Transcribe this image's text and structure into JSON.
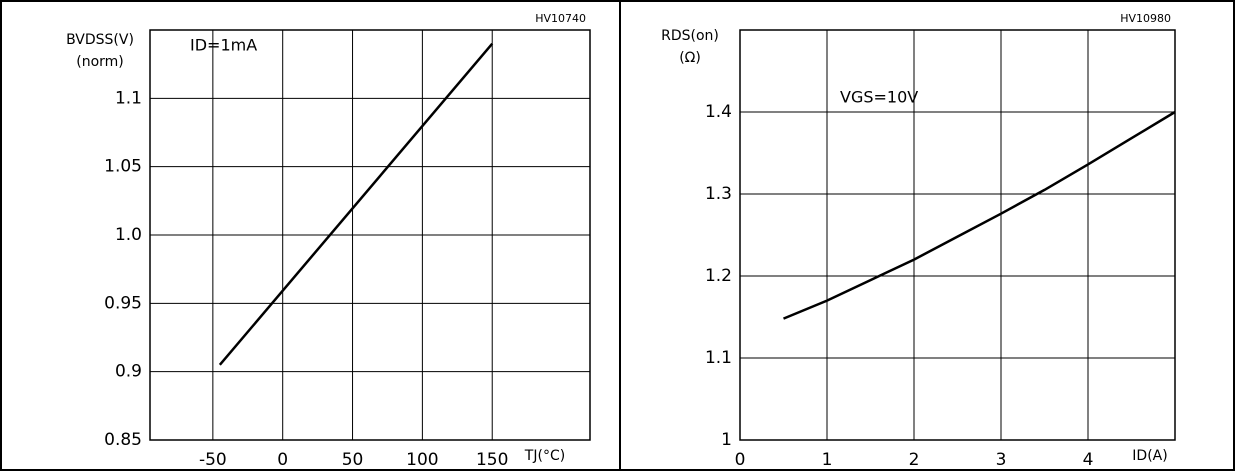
{
  "chart_data": [
    {
      "type": "line",
      "figure_id": "HV10740",
      "annotation": "ID=1mA",
      "ylabel": "BVDSS(V)",
      "ylabel_unit": "(norm)",
      "xlabel": "TJ(°C)",
      "x": [
        -45,
        150
      ],
      "values": [
        0.905,
        1.14
      ],
      "color": "#000000",
      "xlim": [
        -95,
        220
      ],
      "xticks": [
        -50,
        0,
        50,
        100,
        150
      ],
      "ylim": [
        0.85,
        1.15
      ],
      "yticks": [
        0.85,
        0.9,
        0.95,
        {
          "value": 1,
          "label": "1.0"
        },
        1.05,
        1.1
      ],
      "grid": true
    },
    {
      "type": "line",
      "figure_id": "HV10980",
      "annotation": "VGS=10V",
      "ylabel": "RDS(on)",
      "ylabel_unit": "(Ω)",
      "xlabel": "ID(A)",
      "x": [
        0.5,
        1,
        1.5,
        2,
        2.5,
        3,
        3.5,
        4,
        4.5,
        5
      ],
      "values": [
        1.148,
        1.17,
        1.195,
        1.22,
        1.248,
        1.276,
        1.305,
        1.336,
        1.368,
        1.4
      ],
      "color": "#000000",
      "xlim": [
        0,
        5
      ],
      "xticks": [
        0,
        1,
        2,
        3,
        4
      ],
      "ylim": [
        1,
        1.5
      ],
      "yticks": [
        1,
        1.1,
        1.2,
        1.3,
        1.4
      ],
      "grid": true
    }
  ]
}
